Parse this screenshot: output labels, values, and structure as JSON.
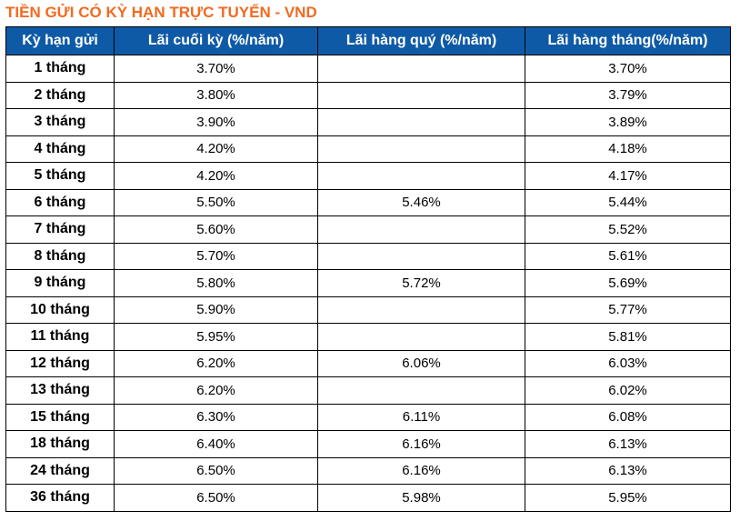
{
  "title": "TIỀN GỬI CÓ KỲ HẠN TRỰC TUYẾN - VND",
  "table": {
    "headers": [
      "Kỳ hạn gửi",
      "Lãi cuối kỳ (%/năm)",
      "Lãi hàng quý (%/năm)",
      "Lãi hàng tháng(%/năm)"
    ],
    "rows": [
      [
        "1 tháng",
        "3.70%",
        "",
        "3.70%"
      ],
      [
        "2 tháng",
        "3.80%",
        "",
        "3.79%"
      ],
      [
        "3 tháng",
        "3.90%",
        "",
        "3.89%"
      ],
      [
        "4 tháng",
        "4.20%",
        "",
        "4.18%"
      ],
      [
        "5 tháng",
        "4.20%",
        "",
        "4.17%"
      ],
      [
        "6 tháng",
        "5.50%",
        "5.46%",
        "5.44%"
      ],
      [
        "7 tháng",
        "5.60%",
        "",
        "5.52%"
      ],
      [
        "8 tháng",
        "5.70%",
        "",
        "5.61%"
      ],
      [
        "9 tháng",
        "5.80%",
        "5.72%",
        "5.69%"
      ],
      [
        "10 tháng",
        "5.90%",
        "",
        "5.77%"
      ],
      [
        "11 tháng",
        "5.95%",
        "",
        "5.81%"
      ],
      [
        "12 tháng",
        "6.20%",
        "6.06%",
        "6.03%"
      ],
      [
        "13 tháng",
        "6.20%",
        "",
        "6.02%"
      ],
      [
        "15 tháng",
        "6.30%",
        "6.11%",
        "6.08%"
      ],
      [
        "18 tháng",
        "6.40%",
        "6.16%",
        "6.13%"
      ],
      [
        "24 tháng",
        "6.50%",
        "6.16%",
        "6.13%"
      ],
      [
        "36 tháng",
        "6.50%",
        "5.98%",
        "5.95%"
      ]
    ]
  },
  "colors": {
    "title": "#f26a21",
    "header_bg": "#0f5aa6",
    "header_text": "#ffffff",
    "border": "#000000"
  }
}
